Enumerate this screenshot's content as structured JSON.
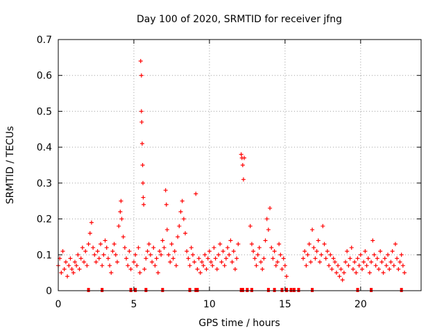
{
  "chart_data": {
    "type": "scatter",
    "title": "Day 100 of 2020, SRMTID for receiver jfng",
    "xlabel": "GPS time / hours",
    "ylabel": "SRMTID / TECUs",
    "xlim": [
      0,
      24
    ],
    "ylim": [
      0,
      0.7
    ],
    "xticks": [
      0,
      5,
      10,
      15,
      20
    ],
    "yticks": [
      0,
      0.1,
      0.2,
      0.3,
      0.4,
      0.5,
      0.6,
      0.7
    ],
    "xtick_labels": [
      "0",
      "5",
      "10",
      "15",
      "20"
    ],
    "ytick_labels": [
      "0",
      "0.1",
      "0.2",
      "0.3",
      "0.4",
      "0.5",
      "0.6",
      "0.7"
    ],
    "grid": true,
    "series": [
      {
        "name": "SRMTID",
        "color": "#ff0000",
        "marker": "+",
        "points": [
          [
            0.0,
            0.07
          ],
          [
            0.1,
            0.09
          ],
          [
            0.2,
            0.05
          ],
          [
            0.3,
            0.11
          ],
          [
            0.4,
            0.06
          ],
          [
            0.5,
            0.08
          ],
          [
            0.6,
            0.04
          ],
          [
            0.7,
            0.07
          ],
          [
            0.8,
            0.09
          ],
          [
            0.9,
            0.06
          ],
          [
            1.0,
            0.05
          ],
          [
            1.1,
            0.08
          ],
          [
            1.2,
            0.07
          ],
          [
            1.3,
            0.1
          ],
          [
            1.4,
            0.06
          ],
          [
            1.5,
            0.09
          ],
          [
            1.6,
            0.12
          ],
          [
            1.7,
            0.08
          ],
          [
            1.8,
            0.11
          ],
          [
            1.9,
            0.07
          ],
          [
            2.0,
            0.13
          ],
          [
            2.1,
            0.16
          ],
          [
            2.2,
            0.19
          ],
          [
            2.3,
            0.12
          ],
          [
            2.4,
            0.1
          ],
          [
            2.5,
            0.08
          ],
          [
            2.6,
            0.11
          ],
          [
            2.7,
            0.09
          ],
          [
            2.8,
            0.13
          ],
          [
            2.9,
            0.07
          ],
          [
            3.0,
            0.1
          ],
          [
            3.1,
            0.14
          ],
          [
            3.2,
            0.12
          ],
          [
            3.3,
            0.09
          ],
          [
            3.4,
            0.07
          ],
          [
            3.5,
            0.05
          ],
          [
            3.6,
            0.11
          ],
          [
            3.7,
            0.13
          ],
          [
            3.8,
            0.1
          ],
          [
            3.9,
            0.08
          ],
          [
            4.0,
            0.18
          ],
          [
            4.1,
            0.22
          ],
          [
            4.15,
            0.25
          ],
          [
            4.2,
            0.2
          ],
          [
            4.3,
            0.15
          ],
          [
            4.4,
            0.12
          ],
          [
            4.5,
            0.09
          ],
          [
            4.6,
            0.07
          ],
          [
            4.7,
            0.11
          ],
          [
            4.8,
            0.06
          ],
          [
            5.0,
            0.08
          ],
          [
            5.1,
            0.1
          ],
          [
            5.2,
            0.07
          ],
          [
            5.3,
            0.12
          ],
          [
            5.4,
            0.05
          ],
          [
            5.45,
            0.64
          ],
          [
            5.5,
            0.6
          ],
          [
            5.5,
            0.5
          ],
          [
            5.52,
            0.47
          ],
          [
            5.55,
            0.41
          ],
          [
            5.58,
            0.35
          ],
          [
            5.6,
            0.3
          ],
          [
            5.62,
            0.26
          ],
          [
            5.65,
            0.24
          ],
          [
            5.7,
            0.06
          ],
          [
            5.8,
            0.09
          ],
          [
            5.9,
            0.11
          ],
          [
            6.0,
            0.13
          ],
          [
            6.1,
            0.1
          ],
          [
            6.2,
            0.08
          ],
          [
            6.3,
            0.12
          ],
          [
            6.4,
            0.07
          ],
          [
            6.5,
            0.09
          ],
          [
            6.6,
            0.05
          ],
          [
            6.7,
            0.11
          ],
          [
            6.8,
            0.1
          ],
          [
            6.9,
            0.14
          ],
          [
            7.0,
            0.12
          ],
          [
            7.1,
            0.28
          ],
          [
            7.15,
            0.24
          ],
          [
            7.2,
            0.17
          ],
          [
            7.3,
            0.1
          ],
          [
            7.4,
            0.08
          ],
          [
            7.5,
            0.13
          ],
          [
            7.6,
            0.09
          ],
          [
            7.7,
            0.11
          ],
          [
            7.8,
            0.07
          ],
          [
            7.9,
            0.15
          ],
          [
            8.0,
            0.18
          ],
          [
            8.1,
            0.22
          ],
          [
            8.2,
            0.25
          ],
          [
            8.3,
            0.2
          ],
          [
            8.4,
            0.16
          ],
          [
            8.5,
            0.11
          ],
          [
            8.6,
            0.09
          ],
          [
            8.7,
            0.07
          ],
          [
            8.8,
            0.12
          ],
          [
            8.9,
            0.1
          ],
          [
            9.0,
            0.08
          ],
          [
            9.1,
            0.27
          ],
          [
            9.2,
            0.06
          ],
          [
            9.3,
            0.09
          ],
          [
            9.4,
            0.05
          ],
          [
            9.5,
            0.08
          ],
          [
            9.6,
            0.07
          ],
          [
            9.7,
            0.1
          ],
          [
            9.8,
            0.06
          ],
          [
            9.9,
            0.09
          ],
          [
            10.0,
            0.11
          ],
          [
            10.1,
            0.08
          ],
          [
            10.2,
            0.07
          ],
          [
            10.3,
            0.12
          ],
          [
            10.4,
            0.09
          ],
          [
            10.5,
            0.06
          ],
          [
            10.6,
            0.1
          ],
          [
            10.7,
            0.13
          ],
          [
            10.8,
            0.08
          ],
          [
            10.9,
            0.11
          ],
          [
            11.0,
            0.07
          ],
          [
            11.1,
            0.09
          ],
          [
            11.2,
            0.12
          ],
          [
            11.3,
            0.1
          ],
          [
            11.4,
            0.14
          ],
          [
            11.5,
            0.08
          ],
          [
            11.6,
            0.11
          ],
          [
            11.7,
            0.06
          ],
          [
            11.8,
            0.09
          ],
          [
            11.9,
            0.13
          ],
          [
            12.1,
            0.38
          ],
          [
            12.15,
            0.37
          ],
          [
            12.2,
            0.35
          ],
          [
            12.25,
            0.31
          ],
          [
            12.3,
            0.37
          ],
          [
            12.7,
            0.18
          ],
          [
            12.8,
            0.13
          ],
          [
            12.9,
            0.11
          ],
          [
            13.0,
            0.09
          ],
          [
            13.1,
            0.07
          ],
          [
            13.2,
            0.1
          ],
          [
            13.3,
            0.12
          ],
          [
            13.4,
            0.08
          ],
          [
            13.5,
            0.06
          ],
          [
            13.6,
            0.09
          ],
          [
            13.7,
            0.14
          ],
          [
            13.8,
            0.2
          ],
          [
            13.9,
            0.17
          ],
          [
            14.0,
            0.23
          ],
          [
            14.1,
            0.12
          ],
          [
            14.2,
            0.09
          ],
          [
            14.3,
            0.11
          ],
          [
            14.4,
            0.07
          ],
          [
            14.5,
            0.08
          ],
          [
            14.6,
            0.13
          ],
          [
            14.7,
            0.1
          ],
          [
            14.8,
            0.06
          ],
          [
            14.9,
            0.09
          ],
          [
            15.0,
            0.07
          ],
          [
            15.1,
            0.04
          ],
          [
            16.2,
            0.09
          ],
          [
            16.3,
            0.11
          ],
          [
            16.4,
            0.07
          ],
          [
            16.5,
            0.1
          ],
          [
            16.6,
            0.13
          ],
          [
            16.7,
            0.08
          ],
          [
            16.8,
            0.17
          ],
          [
            16.9,
            0.12
          ],
          [
            17.0,
            0.09
          ],
          [
            17.1,
            0.11
          ],
          [
            17.2,
            0.14
          ],
          [
            17.3,
            0.08
          ],
          [
            17.4,
            0.1
          ],
          [
            17.5,
            0.18
          ],
          [
            17.6,
            0.13
          ],
          [
            17.7,
            0.09
          ],
          [
            17.8,
            0.11
          ],
          [
            17.9,
            0.07
          ],
          [
            18.0,
            0.1
          ],
          [
            18.1,
            0.06
          ],
          [
            18.2,
            0.09
          ],
          [
            18.3,
            0.08
          ],
          [
            18.4,
            0.05
          ],
          [
            18.5,
            0.07
          ],
          [
            18.6,
            0.04
          ],
          [
            18.7,
            0.06
          ],
          [
            18.8,
            0.03
          ],
          [
            18.9,
            0.05
          ],
          [
            19.0,
            0.08
          ],
          [
            19.1,
            0.11
          ],
          [
            19.2,
            0.07
          ],
          [
            19.3,
            0.09
          ],
          [
            19.4,
            0.12
          ],
          [
            19.5,
            0.06
          ],
          [
            19.6,
            0.08
          ],
          [
            19.7,
            0.05
          ],
          [
            19.8,
            0.09
          ],
          [
            19.9,
            0.07
          ],
          [
            20.0,
            0.1
          ],
          [
            20.1,
            0.06
          ],
          [
            20.2,
            0.08
          ],
          [
            20.3,
            0.11
          ],
          [
            20.4,
            0.07
          ],
          [
            20.5,
            0.09
          ],
          [
            20.6,
            0.05
          ],
          [
            20.7,
            0.08
          ],
          [
            20.8,
            0.14
          ],
          [
            20.9,
            0.1
          ],
          [
            21.0,
            0.07
          ],
          [
            21.1,
            0.09
          ],
          [
            21.2,
            0.06
          ],
          [
            21.3,
            0.11
          ],
          [
            21.4,
            0.08
          ],
          [
            21.5,
            0.05
          ],
          [
            21.6,
            0.09
          ],
          [
            21.7,
            0.07
          ],
          [
            21.8,
            0.1
          ],
          [
            21.9,
            0.06
          ],
          [
            22.0,
            0.08
          ],
          [
            22.1,
            0.11
          ],
          [
            22.2,
            0.07
          ],
          [
            22.3,
            0.13
          ],
          [
            22.4,
            0.09
          ],
          [
            22.5,
            0.06
          ],
          [
            22.6,
            0.08
          ],
          [
            22.7,
            0.1
          ],
          [
            22.8,
            0.07
          ],
          [
            22.9,
            0.05
          ]
        ]
      },
      {
        "name": "zero markers",
        "color": "#ff0000",
        "marker": "square",
        "x": [
          2.0,
          2.9,
          4.8,
          5.1,
          5.8,
          6.9,
          8.7,
          9.1,
          9.2,
          12.1,
          12.2,
          12.5,
          12.8,
          13.9,
          14.3,
          14.8,
          15.1,
          15.4,
          15.6,
          15.9,
          16.8,
          19.8,
          20.7,
          22.7
        ]
      }
    ]
  }
}
